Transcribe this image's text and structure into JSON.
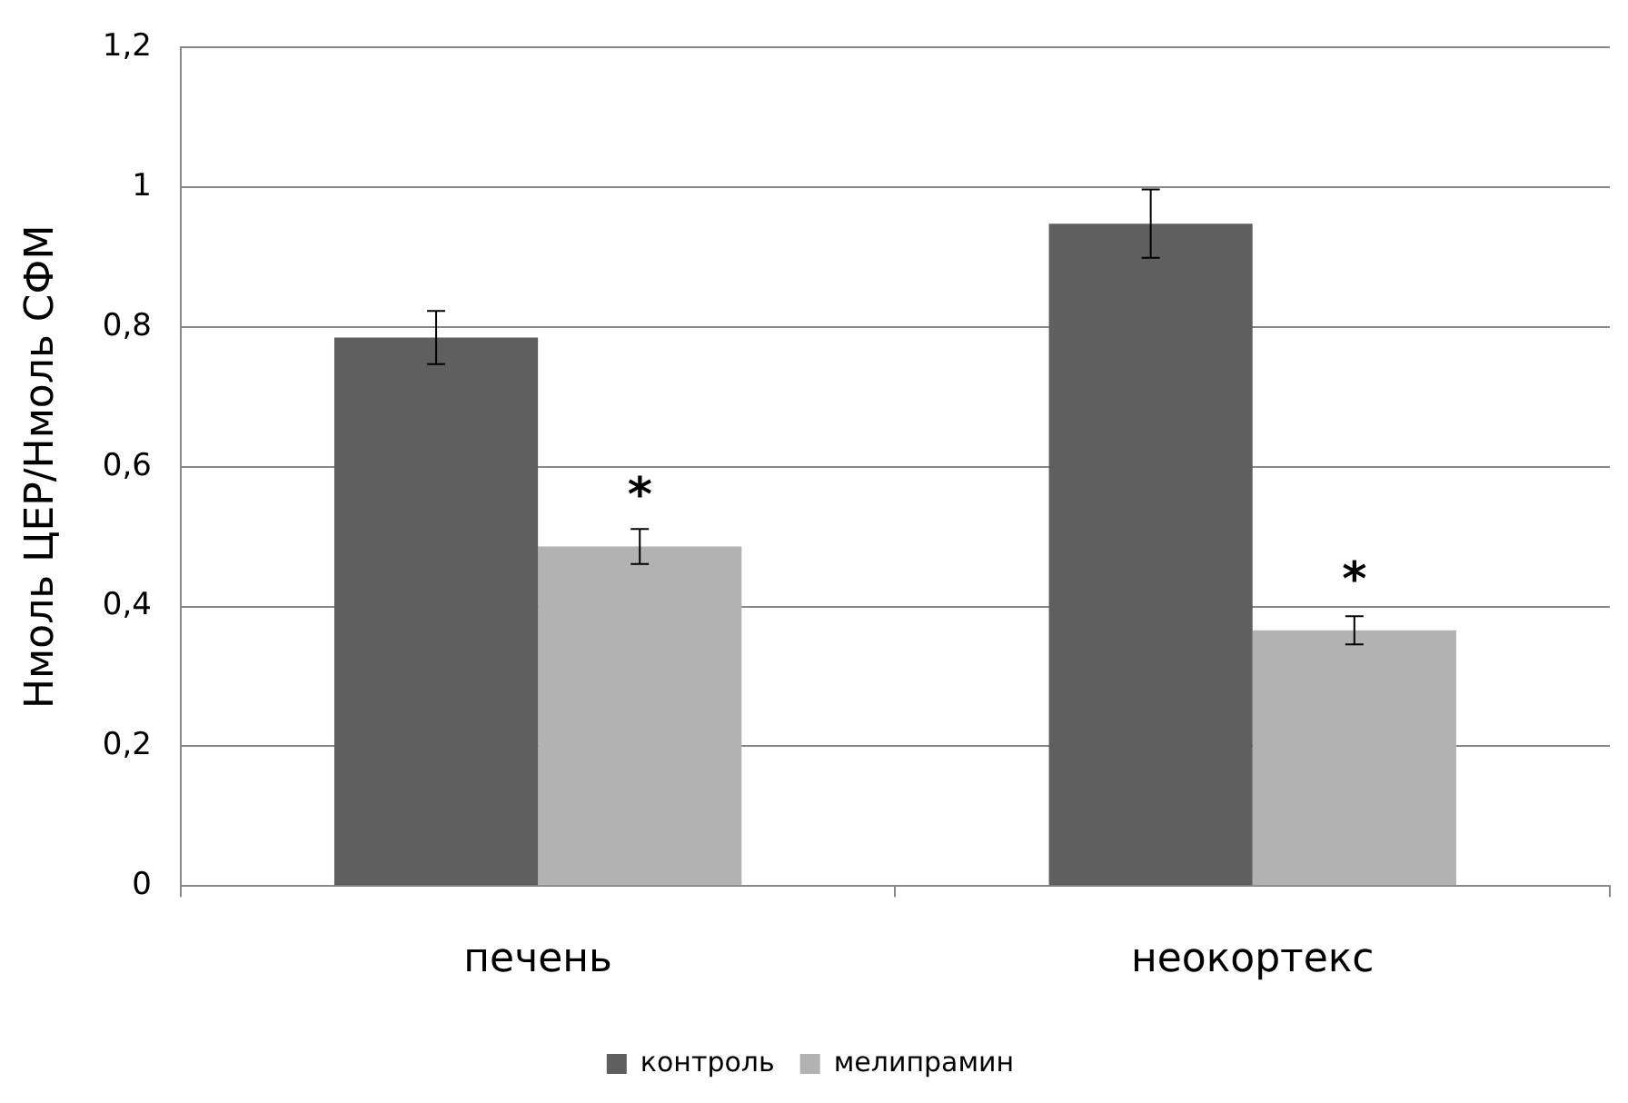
{
  "chart_data": {
    "type": "bar",
    "ylabel": "Нмоль ЦЕР/Нмоль СФМ",
    "categories": [
      "печень",
      "неокортекс"
    ],
    "series": [
      {
        "name": "контроль",
        "color": "#5f5f5f",
        "values": [
          0.785,
          0.948
        ],
        "errors": [
          0.038,
          0.049
        ]
      },
      {
        "name": "мелипрамин",
        "color": "#b2b2b2",
        "values": [
          0.486,
          0.366
        ],
        "errors": [
          0.025,
          0.02
        ]
      }
    ],
    "ylim": [
      0,
      1.2
    ],
    "yticks": [
      0,
      {
        "value": 0.2,
        "label": "0,2"
      },
      {
        "value": 0.4,
        "label": "0,4"
      },
      {
        "value": 0.6,
        "label": "0,6"
      },
      {
        "value": 0.8,
        "label": "0,8"
      },
      1,
      {
        "value": 1.2,
        "label": "1,2"
      }
    ],
    "grid": "y",
    "legend": "bottom",
    "annotations": [
      {
        "text": "*",
        "x": "печень",
        "y": 0.57
      },
      {
        "text": "*",
        "x": "неокортекс",
        "y": 0.45
      }
    ]
  }
}
